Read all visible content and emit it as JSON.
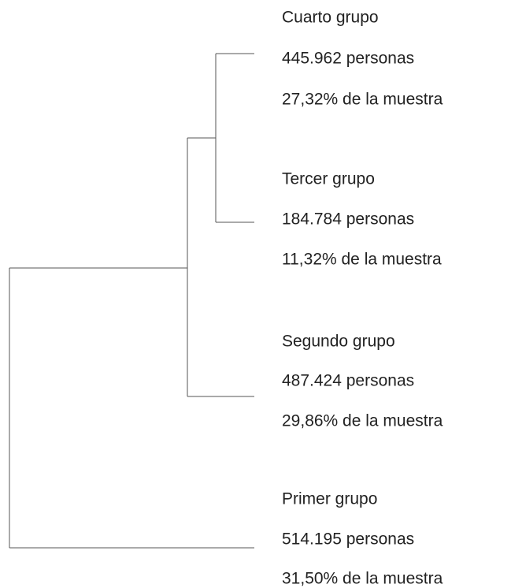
{
  "nodes": [
    {
      "name": "Cuarto grupo",
      "count": "445.962 personas",
      "share": "27,32% de la muestra"
    },
    {
      "name": "Tercer grupo",
      "count": "184.784 personas",
      "share": "11,32% de la muestra"
    },
    {
      "name": "Segundo grupo",
      "count": "487.424 personas",
      "share": "29,86% de la muestra"
    },
    {
      "name": "Primer grupo",
      "count": "514.195 personas",
      "share": "31,50% de la muestra"
    }
  ]
}
